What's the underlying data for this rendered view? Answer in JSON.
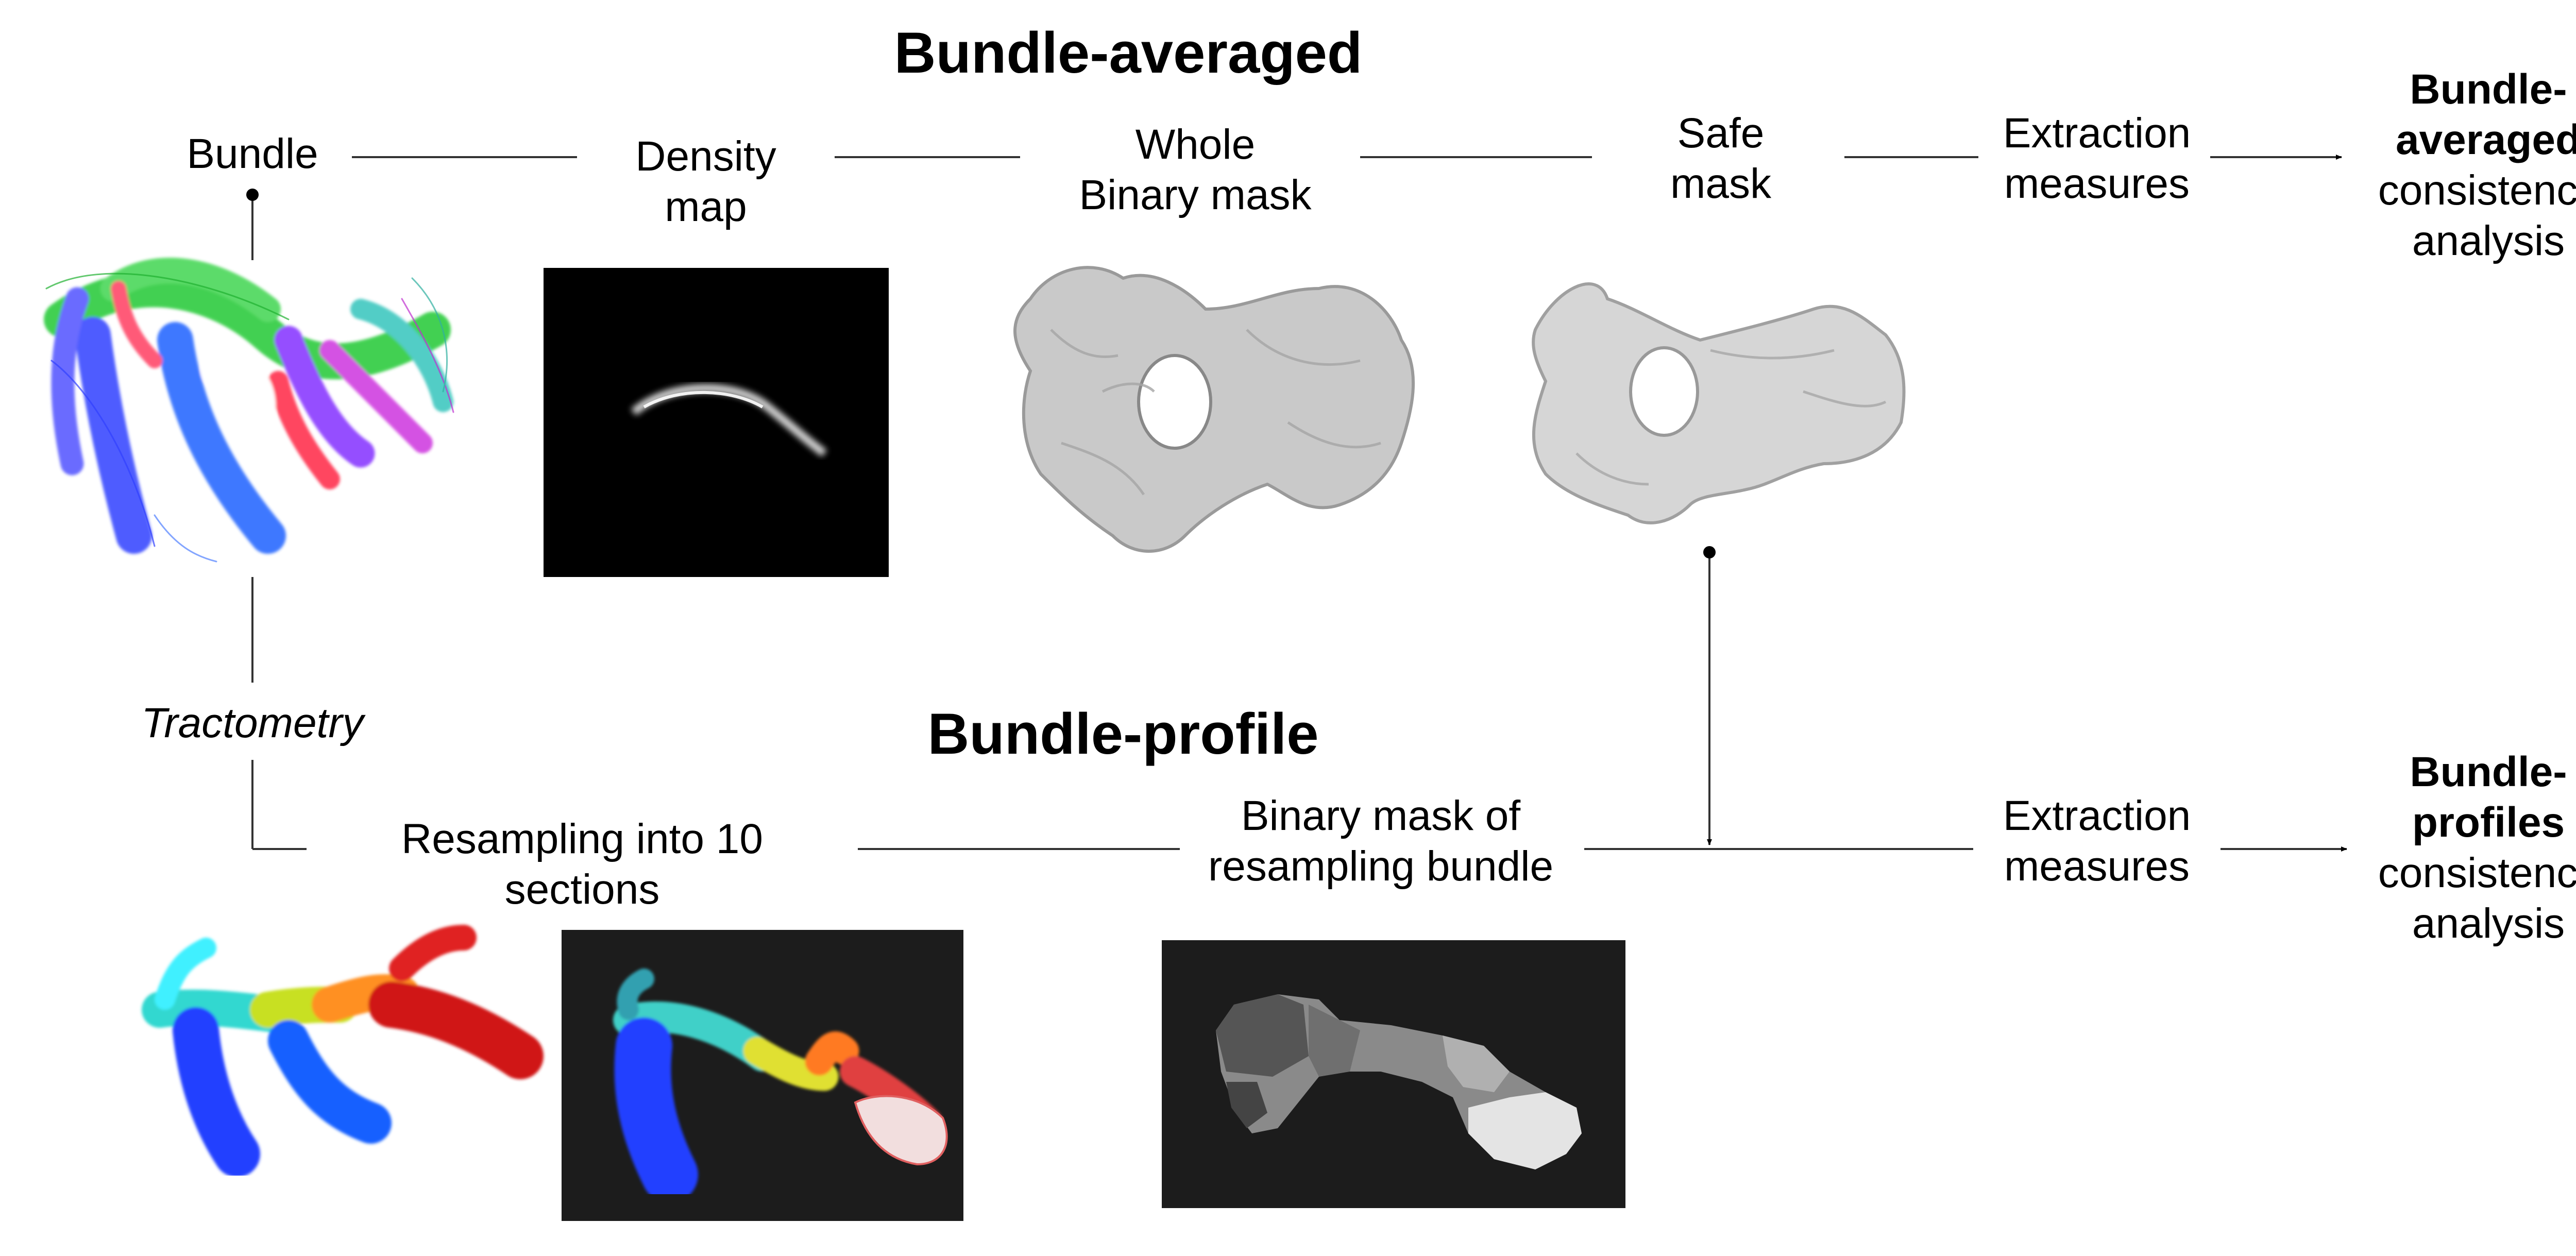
{
  "top_title": "Bundle-averaged",
  "bottom_title": "Bundle-profile",
  "top_row": {
    "bundle": "Bundle",
    "density_line1": "Density",
    "density_line2": "map",
    "whole_line1": "Whole",
    "whole_line2": "Binary mask",
    "safe_line1": "Safe",
    "safe_line2": "mask",
    "extract_line1": "Extraction",
    "extract_line2": "measures",
    "result_line1": "Bundle-",
    "result_line2": "averaged",
    "result_line3": "consistency",
    "result_line4": "analysis"
  },
  "side_label": "Tractometry",
  "bottom_row": {
    "resample_line1": "Resampling into 10",
    "resample_line2": "sections",
    "binmask_line1": "Binary mask of",
    "binmask_line2": "resampling bundle",
    "extract_line1": "Extraction",
    "extract_line2": "measures",
    "result_line1": "Bundle-",
    "result_line2": "profiles",
    "result_line3": "consistency",
    "result_line4": "analysis"
  },
  "colors": {
    "line": "#333333",
    "panel_black": "#000000",
    "panel_dark": "#1c1c1c",
    "mask_gray": "#c8c8c8"
  },
  "images": {
    "tractography": "rainbow-fiber-bundle",
    "density": "density-map-image",
    "whole_mask": "whole-binary-mask-render",
    "safe_mask": "safe-mask-render",
    "resampled_bundle": "resampled-colored-bundle",
    "resampled_slice": "resampled-sections-image",
    "binary_sections": "binary-mask-sections-image"
  }
}
